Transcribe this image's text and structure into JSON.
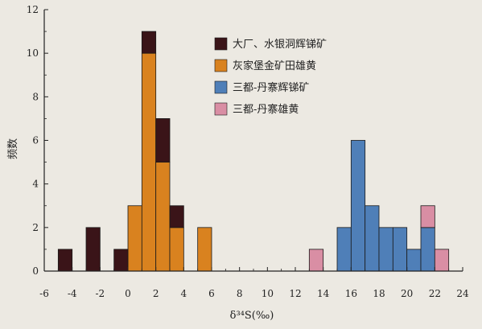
{
  "chart_data": {
    "type": "bar",
    "stacked": true,
    "xlabel": "δ³⁴S(‰)",
    "ylabel": "频数",
    "xlim": [
      -6,
      24
    ],
    "ylim": [
      0,
      12
    ],
    "bin_width": 1,
    "x_ticks": [
      "-6",
      "-4",
      "-2",
      "0",
      "2",
      "4",
      "6",
      "8",
      "10",
      "12",
      "14",
      "16",
      "18",
      "20",
      "22",
      "24"
    ],
    "y_ticks": [
      "0",
      "2",
      "4",
      "6",
      "8",
      "10",
      "12"
    ],
    "legend_position": "top-right",
    "series": [
      {
        "name": "灰家堡金矿田雄黄",
        "color": "#d9821f",
        "bins": [
          {
            "x0": 0,
            "x1": 1,
            "value": 3
          },
          {
            "x0": 1,
            "x1": 2,
            "value": 10
          },
          {
            "x0": 2,
            "x1": 3,
            "value": 5
          },
          {
            "x0": 3,
            "x1": 4,
            "value": 2
          },
          {
            "x0": 5,
            "x1": 6,
            "value": 2
          }
        ]
      },
      {
        "name": "大厂、水银洞辉锑矿",
        "color": "#3a1418",
        "bins": [
          {
            "x0": -5,
            "x1": -4,
            "value": 1
          },
          {
            "x0": -3,
            "x1": -2,
            "value": 2
          },
          {
            "x0": -1,
            "x1": 0,
            "value": 1
          },
          {
            "x0": 1,
            "x1": 2,
            "value": 1
          },
          {
            "x0": 2,
            "x1": 3,
            "value": 2
          },
          {
            "x0": 3,
            "x1": 4,
            "value": 1
          }
        ]
      },
      {
        "name": "三都-丹寨辉锑矿",
        "color": "#4f7fb8",
        "bins": [
          {
            "x0": 15,
            "x1": 16,
            "value": 2
          },
          {
            "x0": 16,
            "x1": 17,
            "value": 6
          },
          {
            "x0": 17,
            "x1": 18,
            "value": 3
          },
          {
            "x0": 18,
            "x1": 19,
            "value": 2
          },
          {
            "x0": 19,
            "x1": 20,
            "value": 2
          },
          {
            "x0": 20,
            "x1": 21,
            "value": 1
          },
          {
            "x0": 21,
            "x1": 22,
            "value": 2
          }
        ]
      },
      {
        "name": "三都-丹寨雄黄",
        "color": "#d98ea4",
        "bins": [
          {
            "x0": 13,
            "x1": 14,
            "value": 1
          },
          {
            "x0": 21,
            "x1": 22,
            "value": 1
          },
          {
            "x0": 22,
            "x1": 23,
            "value": 1
          }
        ]
      }
    ],
    "legend_order": [
      "大厂、水银洞辉锑矿",
      "灰家堡金矿田雄黄",
      "三都-丹寨辉锑矿",
      "三都-丹寨雄黄"
    ]
  }
}
